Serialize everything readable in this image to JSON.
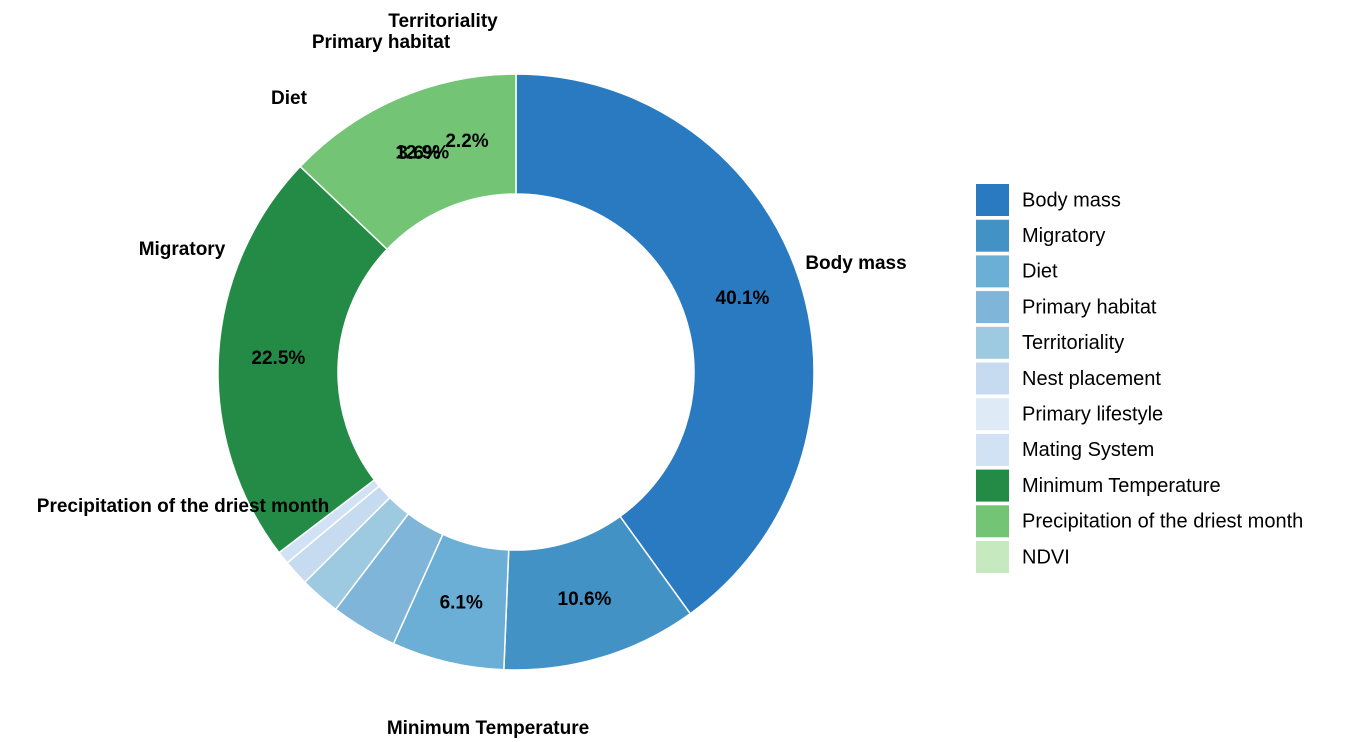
{
  "chart_data": {
    "type": "pie",
    "donut": true,
    "legend_position": "right",
    "slices": [
      {
        "name": "Body mass",
        "value": 40.1,
        "color": "#2A7AC2",
        "pct_label": "40.1%",
        "outer_label": "Body mass"
      },
      {
        "name": "Migratory",
        "value": 10.6,
        "color": "#4292C6",
        "pct_label": "10.6%",
        "outer_label": "Migratory"
      },
      {
        "name": "Diet",
        "value": 6.1,
        "color": "#6BAED6",
        "pct_label": "6.1%",
        "outer_label": "Diet"
      },
      {
        "name": "Primary habitat",
        "value": 3.6,
        "color": "#7FB5D8",
        "pct_label": "3.6%",
        "outer_label": "Primary habitat"
      },
      {
        "name": "Territoriality",
        "value": 2.2,
        "color": "#9ECAE1",
        "pct_label": "2.2%",
        "outer_label": "Territoriality"
      },
      {
        "name": "Nest placement",
        "value": 1.4,
        "color": "#C6DBEF",
        "pct_label": "",
        "outer_label": ""
      },
      {
        "name": "Primary lifestyle",
        "value": 0.0,
        "color": "#DEEBF7",
        "pct_label": "",
        "outer_label": ""
      },
      {
        "name": "Mating System",
        "value": 0.7,
        "color": "#D0E2F3",
        "pct_label": "",
        "outer_label": ""
      },
      {
        "name": "Minimum Temperature",
        "value": 22.5,
        "color": "#238B45",
        "pct_label": "22.5%",
        "outer_label": "Minimum Temperature"
      },
      {
        "name": "Precipitation of the driest month",
        "value": 12.9,
        "color": "#74C476",
        "pct_label": "12.9%",
        "outer_label": "Precipitation of the driest month"
      },
      {
        "name": "NDVI",
        "value": 0.0,
        "color": "#C7E9C0",
        "pct_label": "",
        "outer_label": ""
      }
    ],
    "legend": [
      "Body mass",
      "Migratory",
      "Diet",
      "Primary habitat",
      "Territoriality",
      "Nest placement",
      "Primary lifestyle",
      "Mating System",
      "Minimum Temperature",
      "Precipitation of the driest month",
      "NDVI"
    ]
  }
}
